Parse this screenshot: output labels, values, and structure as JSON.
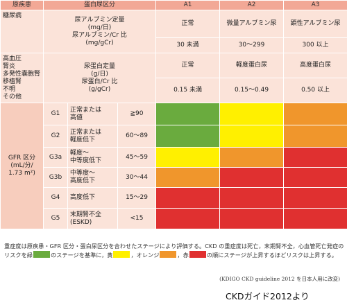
{
  "header": {
    "disease": "原疾患",
    "protein_category": "蛋白尿区分",
    "a1": "A1",
    "a2": "A2",
    "a3": "A3"
  },
  "diabetes": {
    "disease": "糖尿病",
    "measure_lines": [
      "尿アルブミン定量",
      "(mg/日)",
      "尿アルブミン/Cr 比",
      "(mg/gCr)"
    ],
    "a1_label": "正常",
    "a2_label": "微量アルブミン尿",
    "a3_label": "顕性アルブミン尿",
    "a1_range": "30 未満",
    "a2_range": "30～299",
    "a3_range": "300 以上"
  },
  "other": {
    "disease_lines": [
      "高血圧",
      "腎炎",
      "多発性嚢胞腎",
      "移植腎",
      "不明",
      "その他"
    ],
    "measure_lines": [
      "尿蛋白定量",
      "(g/日)",
      "尿蛋白/Cr 比",
      "(g/gCr)"
    ],
    "a1_label": "正常",
    "a2_label": "軽度蛋白尿",
    "a3_label": "高度蛋白尿",
    "a1_range": "0.15 未満",
    "a2_range": "0.15～0.49",
    "a3_range": "0.50 以上"
  },
  "gfr": {
    "label_lines": [
      "GFR 区分",
      "(mL/分/",
      "1.73 m²)"
    ],
    "stages": [
      {
        "code": "G1",
        "desc": [
          "正常または",
          "高値"
        ],
        "range": "≧90",
        "colors": [
          "green",
          "yellow",
          "orange"
        ]
      },
      {
        "code": "G2",
        "desc": [
          "正常または",
          "軽度低下"
        ],
        "range": "60～89",
        "colors": [
          "green",
          "yellow",
          "orange"
        ]
      },
      {
        "code": "G3a",
        "desc": [
          "軽度～",
          "中等度低下"
        ],
        "range": "45～59",
        "colors": [
          "yellow",
          "orange",
          "red"
        ]
      },
      {
        "code": "G3b",
        "desc": [
          "中等度～",
          "高度低下"
        ],
        "range": "30～44",
        "colors": [
          "orange",
          "red",
          "red"
        ]
      },
      {
        "code": "G4",
        "desc": [
          "高度低下"
        ],
        "range": "15～29",
        "colors": [
          "red",
          "red",
          "red"
        ]
      },
      {
        "code": "G5",
        "desc": [
          "末期腎不全",
          "(ESKD)"
        ],
        "range": "<15",
        "colors": [
          "red",
          "red",
          "red"
        ]
      }
    ]
  },
  "colors": {
    "green": "#6aab3e",
    "yellow": "#fff000",
    "orange": "#f0962c",
    "red": "#e03030",
    "header": "#f2a896",
    "cell_light": "#fbe3d9",
    "cell_mid": "#f7cdbd"
  },
  "note": {
    "part1": "重症度は原疾患・GFR 区分・蛋白尿区分を合わせたステージにより評価する。CKD の重症度は死亡，末期腎不全，心血管死亡発症のリスクを緑",
    "part2": "のステージを基準に，黄",
    "part3": "，オレンジ",
    "part4": "，赤",
    "part5": "の順にステージが上昇するほどリスクは上昇する。"
  },
  "credit": "(KDIGO CKD guideline 2012 を日本人用に改変)",
  "source": "CKDガイド2012より"
}
